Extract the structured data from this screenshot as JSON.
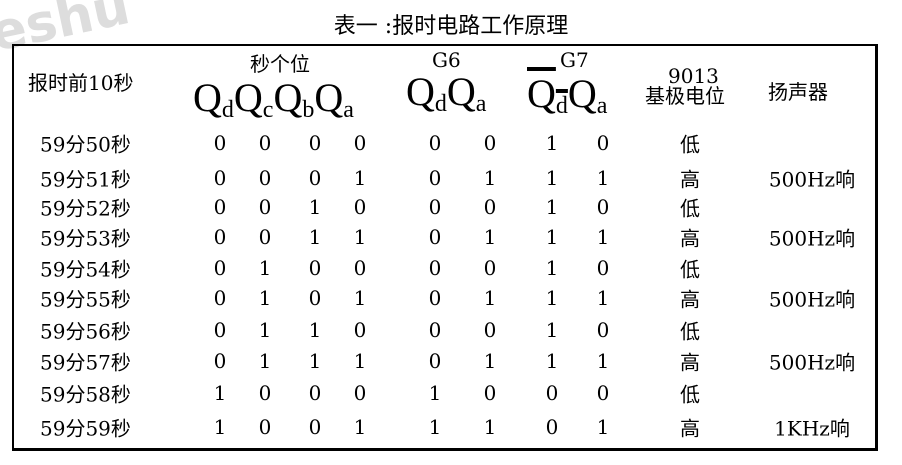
{
  "title": "表一 :报时电路工作原理",
  "watermark": "eshu",
  "headers": {
    "time": "报时前10秒",
    "sec_units": "秒个位",
    "g6": "G6",
    "g7": "G7",
    "transistor": "9013",
    "base_potential": "基极电位",
    "speaker": "扬声器",
    "q": "Q",
    "subs": [
      "d",
      "c",
      "b",
      "a"
    ]
  },
  "rows": [
    {
      "time": "59分50秒",
      "bits": [
        "0",
        "0",
        "0",
        "0",
        "0",
        "0",
        "1",
        "0"
      ],
      "base": "低",
      "speaker": ""
    },
    {
      "time": "59分51秒",
      "bits": [
        "0",
        "0",
        "0",
        "1",
        "0",
        "1",
        "1",
        "1"
      ],
      "base": "高",
      "speaker": "500Hz响"
    },
    {
      "time": "59分52秒",
      "bits": [
        "0",
        "0",
        "1",
        "0",
        "0",
        "0",
        "1",
        "0"
      ],
      "base": "低",
      "speaker": ""
    },
    {
      "time": "59分53秒",
      "bits": [
        "0",
        "0",
        "1",
        "1",
        "0",
        "1",
        "1",
        "1"
      ],
      "base": "高",
      "speaker": "500Hz响"
    },
    {
      "time": "59分54秒",
      "bits": [
        "0",
        "1",
        "0",
        "0",
        "0",
        "0",
        "1",
        "0"
      ],
      "base": "低",
      "speaker": ""
    },
    {
      "time": "59分55秒",
      "bits": [
        "0",
        "1",
        "0",
        "1",
        "0",
        "1",
        "1",
        "1"
      ],
      "base": "高",
      "speaker": "500Hz响"
    },
    {
      "time": "59分56秒",
      "bits": [
        "0",
        "1",
        "1",
        "0",
        "0",
        "0",
        "1",
        "0"
      ],
      "base": "低",
      "speaker": ""
    },
    {
      "time": "59分57秒",
      "bits": [
        "0",
        "1",
        "1",
        "1",
        "0",
        "1",
        "1",
        "1"
      ],
      "base": "高",
      "speaker": "500Hz响"
    },
    {
      "time": "59分58秒",
      "bits": [
        "1",
        "0",
        "0",
        "0",
        "1",
        "0",
        "0",
        "0"
      ],
      "base": "低",
      "speaker": ""
    },
    {
      "time": "59分59秒",
      "bits": [
        "1",
        "0",
        "0",
        "1",
        "1",
        "1",
        "0",
        "1"
      ],
      "base": "高",
      "speaker": "1KHz响"
    }
  ]
}
